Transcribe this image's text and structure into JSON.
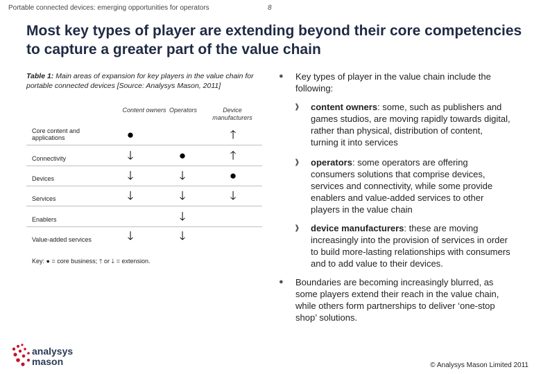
{
  "header": {
    "doc_title": "Portable connected devices: emerging opportunities for operators",
    "page_number": "8"
  },
  "title": "Most key types of player are extending beyond their core competencies to capture a greater part of the value chain",
  "table": {
    "caption_label": "Table 1:",
    "caption_text": " Main areas of expansion for key players in the value chain for portable connected devices [Source: Analysys Mason, 2011]",
    "columns": [
      "Content owners",
      "Operators",
      "Device manufacturers"
    ],
    "rows": [
      {
        "label": "Core content and applications",
        "cells": [
          "●",
          "",
          "🡑"
        ]
      },
      {
        "label": "Connectivity",
        "cells": [
          "🡓",
          "●",
          "🡑"
        ]
      },
      {
        "label": "Devices",
        "cells": [
          "🡓",
          "🡓",
          "●"
        ]
      },
      {
        "label": "Services",
        "cells": [
          "🡓",
          "🡓",
          "🡓"
        ]
      },
      {
        "label": "Enablers",
        "cells": [
          "",
          "🡓",
          ""
        ]
      },
      {
        "label": "Value-added services",
        "cells": [
          "🡓",
          "🡓",
          ""
        ]
      }
    ],
    "key": {
      "prefix": "Key:",
      "core_symbol": "●",
      "core_text": "= core business;",
      "up_symbol": "🡑",
      "or_text": "or",
      "down_symbol": "🡓",
      "extension_text": "= extension."
    }
  },
  "bullets": {
    "intro": "Key types of player in the value chain include the following:",
    "items": [
      {
        "term": "content owners",
        "text": ": some, such as publishers and games studios, are moving rapidly towards digital, rather than physical, distribution of content, turning it into services"
      },
      {
        "term": "operators",
        "text": ": some operators are offering consumers solutions that comprise devices, services and connectivity, while some provide enablers and value-added services to other players in the value chain"
      },
      {
        "term": "device manufacturers",
        "text": ": these are moving increasingly into the provision of services in order to build more-lasting relationships with consumers and to add value to their devices."
      }
    ],
    "closing": "Boundaries are becoming increasingly blurred, as some players extend their reach in the value chain, while others form partnerships to deliver ‘one-stop shop’ solutions."
  },
  "footer": {
    "logo_line1": "analysys",
    "logo_line2": "mason",
    "copyright": "© Analysys Mason Limited 2011"
  }
}
